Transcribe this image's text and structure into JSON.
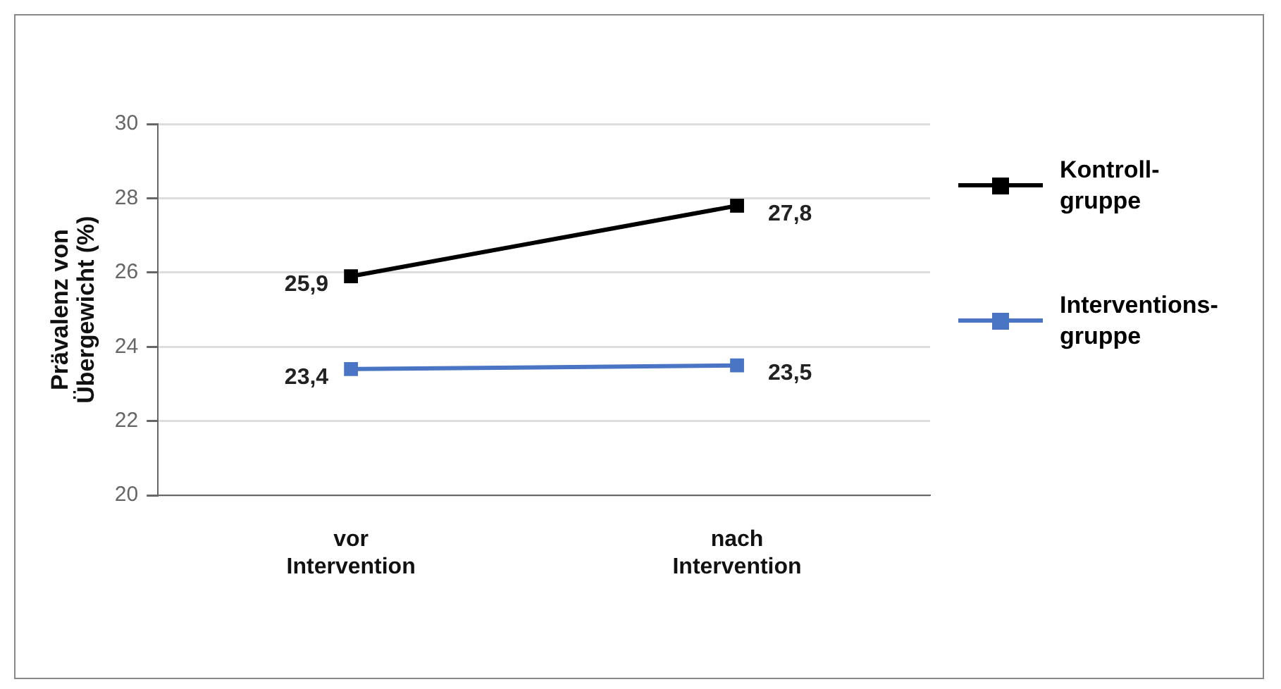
{
  "chart_data": {
    "type": "line",
    "ylabel": "Prävalenz von\nÜbergewicht (%)",
    "categories": [
      "vor\nIntervention",
      "nach\nIntervention"
    ],
    "series": [
      {
        "name": "Kontroll-\ngruppe",
        "color": "#000000",
        "values": [
          25.9,
          27.8
        ],
        "value_labels": [
          "25,9",
          "27,8"
        ]
      },
      {
        "name": "Interventions-\ngruppe",
        "color": "#4a74c4",
        "values": [
          23.4,
          23.5
        ],
        "value_labels": [
          "23,4",
          "23,5"
        ]
      }
    ],
    "ylim": [
      20,
      30
    ],
    "yticks": [
      20,
      22,
      24,
      26,
      28,
      30
    ],
    "grid": "y",
    "legend": "right",
    "marker": "square",
    "line_style": "solid"
  }
}
